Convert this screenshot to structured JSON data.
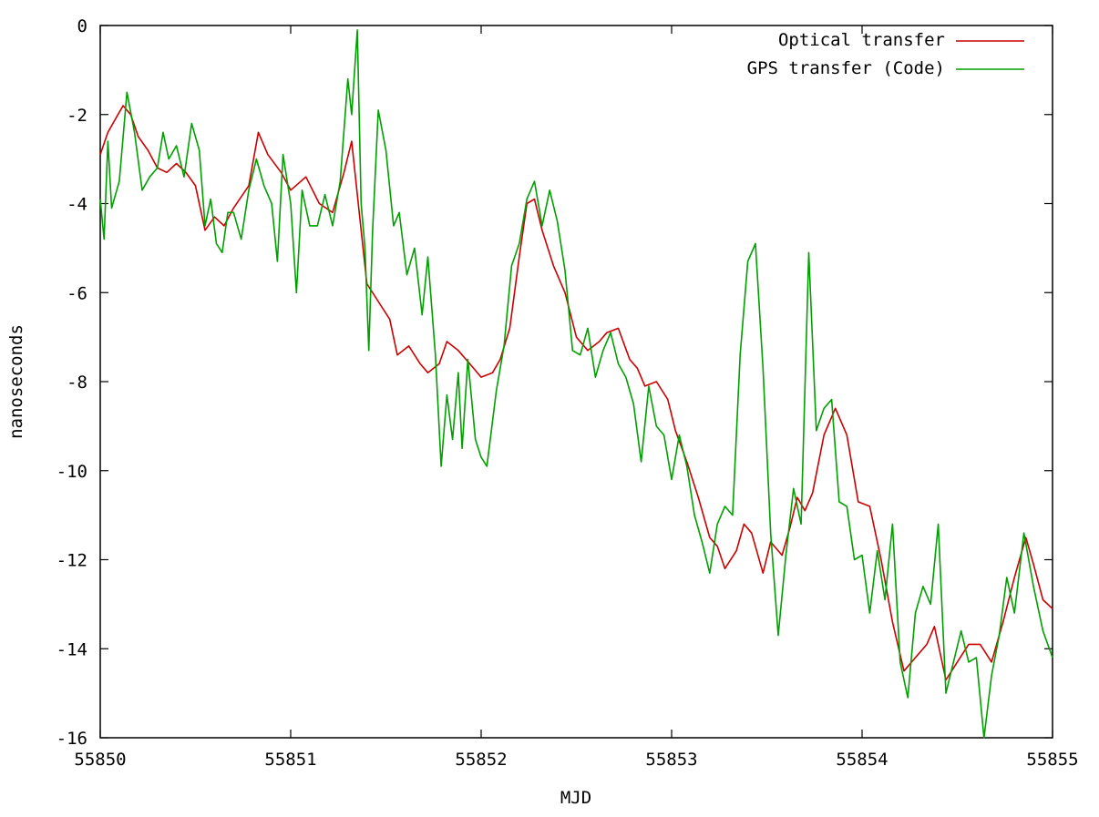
{
  "chart_data": {
    "type": "line",
    "title": "",
    "xlabel": "MJD",
    "ylabel": "nanoseconds",
    "xlim": [
      55850,
      55855
    ],
    "ylim": [
      -16,
      0
    ],
    "xticks": [
      55850,
      55851,
      55852,
      55853,
      55854,
      55855
    ],
    "yticks": [
      0,
      -2,
      -4,
      -6,
      -8,
      -10,
      -12,
      -14,
      -16
    ],
    "xtick_labels": [
      "55850",
      "55851",
      "55852",
      "55853",
      "55854",
      "55855"
    ],
    "ytick_labels": [
      "0",
      "-2",
      "-4",
      "-6",
      "-8",
      "-10",
      "-12",
      "-14",
      "-16"
    ],
    "grid": false,
    "legend_position": "top-right",
    "series": [
      {
        "name": "Optical transfer",
        "color": "#cc0000",
        "points": [
          [
            55850.0,
            -2.9
          ],
          [
            55850.04,
            -2.4
          ],
          [
            55850.08,
            -2.1
          ],
          [
            55850.12,
            -1.8
          ],
          [
            55850.16,
            -2.0
          ],
          [
            55850.2,
            -2.5
          ],
          [
            55850.25,
            -2.8
          ],
          [
            55850.3,
            -3.2
          ],
          [
            55850.35,
            -3.3
          ],
          [
            55850.4,
            -3.1
          ],
          [
            55850.45,
            -3.3
          ],
          [
            55850.5,
            -3.6
          ],
          [
            55850.55,
            -4.6
          ],
          [
            55850.6,
            -4.3
          ],
          [
            55850.65,
            -4.5
          ],
          [
            55850.7,
            -4.1
          ],
          [
            55850.78,
            -3.6
          ],
          [
            55850.83,
            -2.4
          ],
          [
            55850.88,
            -2.9
          ],
          [
            55850.95,
            -3.3
          ],
          [
            55851.0,
            -3.7
          ],
          [
            55851.08,
            -3.4
          ],
          [
            55851.15,
            -4.0
          ],
          [
            55851.22,
            -4.2
          ],
          [
            55851.28,
            -3.3
          ],
          [
            55851.32,
            -2.6
          ],
          [
            55851.36,
            -4.2
          ],
          [
            55851.4,
            -5.8
          ],
          [
            55851.46,
            -6.2
          ],
          [
            55851.52,
            -6.6
          ],
          [
            55851.56,
            -7.4
          ],
          [
            55851.62,
            -7.2
          ],
          [
            55851.68,
            -7.6
          ],
          [
            55851.72,
            -7.8
          ],
          [
            55851.78,
            -7.6
          ],
          [
            55851.82,
            -7.1
          ],
          [
            55851.88,
            -7.3
          ],
          [
            55851.94,
            -7.6
          ],
          [
            55852.0,
            -7.9
          ],
          [
            55852.06,
            -7.8
          ],
          [
            55852.1,
            -7.5
          ],
          [
            55852.15,
            -6.8
          ],
          [
            55852.2,
            -5.2
          ],
          [
            55852.24,
            -4.0
          ],
          [
            55852.28,
            -3.9
          ],
          [
            55852.32,
            -4.6
          ],
          [
            55852.38,
            -5.4
          ],
          [
            55852.44,
            -6.0
          ],
          [
            55852.5,
            -7.0
          ],
          [
            55852.56,
            -7.3
          ],
          [
            55852.62,
            -7.1
          ],
          [
            55852.66,
            -6.9
          ],
          [
            55852.72,
            -6.8
          ],
          [
            55852.78,
            -7.5
          ],
          [
            55852.82,
            -7.7
          ],
          [
            55852.86,
            -8.1
          ],
          [
            55852.92,
            -8.0
          ],
          [
            55852.98,
            -8.4
          ],
          [
            55853.02,
            -9.1
          ],
          [
            55853.08,
            -9.8
          ],
          [
            55853.14,
            -10.6
          ],
          [
            55853.2,
            -11.5
          ],
          [
            55853.24,
            -11.7
          ],
          [
            55853.28,
            -12.2
          ],
          [
            55853.34,
            -11.8
          ],
          [
            55853.38,
            -11.2
          ],
          [
            55853.42,
            -11.4
          ],
          [
            55853.48,
            -12.3
          ],
          [
            55853.52,
            -11.6
          ],
          [
            55853.58,
            -11.9
          ],
          [
            55853.62,
            -11.3
          ],
          [
            55853.66,
            -10.6
          ],
          [
            55853.7,
            -10.9
          ],
          [
            55853.74,
            -10.5
          ],
          [
            55853.8,
            -9.2
          ],
          [
            55853.86,
            -8.6
          ],
          [
            55853.92,
            -9.2
          ],
          [
            55853.98,
            -10.7
          ],
          [
            55854.04,
            -10.8
          ],
          [
            55854.1,
            -12.0
          ],
          [
            55854.16,
            -13.4
          ],
          [
            55854.22,
            -14.5
          ],
          [
            55854.28,
            -14.2
          ],
          [
            55854.34,
            -13.9
          ],
          [
            55854.38,
            -13.5
          ],
          [
            55854.44,
            -14.7
          ],
          [
            55854.5,
            -14.3
          ],
          [
            55854.56,
            -13.9
          ],
          [
            55854.62,
            -13.9
          ],
          [
            55854.68,
            -14.3
          ],
          [
            55854.74,
            -13.4
          ],
          [
            55854.8,
            -12.4
          ],
          [
            55854.86,
            -11.5
          ],
          [
            55854.9,
            -12.1
          ],
          [
            55854.95,
            -12.9
          ],
          [
            55855.0,
            -13.1
          ]
        ]
      },
      {
        "name": "GPS transfer (Code)",
        "color": "#00a000",
        "points": [
          [
            55850.0,
            -3.9
          ],
          [
            55850.02,
            -4.8
          ],
          [
            55850.04,
            -2.6
          ],
          [
            55850.06,
            -4.1
          ],
          [
            55850.1,
            -3.5
          ],
          [
            55850.14,
            -1.5
          ],
          [
            55850.18,
            -2.4
          ],
          [
            55850.22,
            -3.7
          ],
          [
            55850.26,
            -3.4
          ],
          [
            55850.3,
            -3.2
          ],
          [
            55850.33,
            -2.4
          ],
          [
            55850.36,
            -3.0
          ],
          [
            55850.4,
            -2.7
          ],
          [
            55850.44,
            -3.4
          ],
          [
            55850.48,
            -2.2
          ],
          [
            55850.52,
            -2.8
          ],
          [
            55850.55,
            -4.5
          ],
          [
            55850.58,
            -3.9
          ],
          [
            55850.61,
            -4.9
          ],
          [
            55850.64,
            -5.1
          ],
          [
            55850.67,
            -4.2
          ],
          [
            55850.7,
            -4.2
          ],
          [
            55850.74,
            -4.8
          ],
          [
            55850.78,
            -3.7
          ],
          [
            55850.82,
            -3.0
          ],
          [
            55850.86,
            -3.6
          ],
          [
            55850.9,
            -4.0
          ],
          [
            55850.93,
            -5.3
          ],
          [
            55850.96,
            -2.9
          ],
          [
            55851.0,
            -4.0
          ],
          [
            55851.03,
            -6.0
          ],
          [
            55851.06,
            -3.7
          ],
          [
            55851.1,
            -4.5
          ],
          [
            55851.14,
            -4.5
          ],
          [
            55851.18,
            -3.8
          ],
          [
            55851.22,
            -4.5
          ],
          [
            55851.26,
            -3.5
          ],
          [
            55851.3,
            -1.2
          ],
          [
            55851.32,
            -2.0
          ],
          [
            55851.35,
            -0.1
          ],
          [
            55851.37,
            -4.0
          ],
          [
            55851.39,
            -5.0
          ],
          [
            55851.41,
            -7.3
          ],
          [
            55851.43,
            -4.6
          ],
          [
            55851.46,
            -1.9
          ],
          [
            55851.5,
            -2.8
          ],
          [
            55851.54,
            -4.5
          ],
          [
            55851.57,
            -4.2
          ],
          [
            55851.61,
            -5.6
          ],
          [
            55851.65,
            -5.0
          ],
          [
            55851.69,
            -6.5
          ],
          [
            55851.72,
            -5.2
          ],
          [
            55851.76,
            -7.4
          ],
          [
            55851.79,
            -9.9
          ],
          [
            55851.82,
            -8.3
          ],
          [
            55851.85,
            -9.3
          ],
          [
            55851.88,
            -7.8
          ],
          [
            55851.9,
            -9.5
          ],
          [
            55851.93,
            -7.5
          ],
          [
            55851.97,
            -9.3
          ],
          [
            55852.0,
            -9.7
          ],
          [
            55852.03,
            -9.9
          ],
          [
            55852.08,
            -8.2
          ],
          [
            55852.12,
            -7.2
          ],
          [
            55852.16,
            -5.4
          ],
          [
            55852.2,
            -4.9
          ],
          [
            55852.24,
            -3.9
          ],
          [
            55852.28,
            -3.5
          ],
          [
            55852.32,
            -4.5
          ],
          [
            55852.36,
            -3.7
          ],
          [
            55852.4,
            -4.4
          ],
          [
            55852.44,
            -5.5
          ],
          [
            55852.48,
            -7.3
          ],
          [
            55852.52,
            -7.4
          ],
          [
            55852.56,
            -6.8
          ],
          [
            55852.6,
            -7.9
          ],
          [
            55852.64,
            -7.3
          ],
          [
            55852.68,
            -6.9
          ],
          [
            55852.72,
            -7.6
          ],
          [
            55852.76,
            -7.9
          ],
          [
            55852.8,
            -8.5
          ],
          [
            55852.84,
            -9.8
          ],
          [
            55852.88,
            -8.1
          ],
          [
            55852.92,
            -9.0
          ],
          [
            55852.96,
            -9.2
          ],
          [
            55853.0,
            -10.2
          ],
          [
            55853.04,
            -9.2
          ],
          [
            55853.08,
            -9.9
          ],
          [
            55853.12,
            -11.0
          ],
          [
            55853.16,
            -11.6
          ],
          [
            55853.2,
            -12.3
          ],
          [
            55853.24,
            -11.2
          ],
          [
            55853.28,
            -10.8
          ],
          [
            55853.32,
            -11.0
          ],
          [
            55853.36,
            -7.4
          ],
          [
            55853.4,
            -5.3
          ],
          [
            55853.44,
            -4.9
          ],
          [
            55853.48,
            -7.7
          ],
          [
            55853.52,
            -11.4
          ],
          [
            55853.56,
            -13.7
          ],
          [
            55853.6,
            -11.9
          ],
          [
            55853.64,
            -10.4
          ],
          [
            55853.68,
            -11.2
          ],
          [
            55853.72,
            -5.1
          ],
          [
            55853.76,
            -9.1
          ],
          [
            55853.8,
            -8.6
          ],
          [
            55853.84,
            -8.4
          ],
          [
            55853.88,
            -10.7
          ],
          [
            55853.92,
            -10.8
          ],
          [
            55853.96,
            -12.0
          ],
          [
            55854.0,
            -11.9
          ],
          [
            55854.04,
            -13.2
          ],
          [
            55854.08,
            -11.8
          ],
          [
            55854.12,
            -12.9
          ],
          [
            55854.16,
            -11.2
          ],
          [
            55854.2,
            -14.3
          ],
          [
            55854.24,
            -15.1
          ],
          [
            55854.28,
            -13.2
          ],
          [
            55854.32,
            -12.6
          ],
          [
            55854.36,
            -13.0
          ],
          [
            55854.4,
            -11.2
          ],
          [
            55854.44,
            -15.0
          ],
          [
            55854.48,
            -14.3
          ],
          [
            55854.52,
            -13.6
          ],
          [
            55854.56,
            -14.3
          ],
          [
            55854.6,
            -14.2
          ],
          [
            55854.64,
            -16.0
          ],
          [
            55854.68,
            -14.6
          ],
          [
            55854.72,
            -13.7
          ],
          [
            55854.76,
            -12.4
          ],
          [
            55854.8,
            -13.2
          ],
          [
            55854.85,
            -11.4
          ],
          [
            55854.9,
            -12.6
          ],
          [
            55854.95,
            -13.6
          ],
          [
            55855.0,
            -14.2
          ]
        ]
      }
    ]
  }
}
